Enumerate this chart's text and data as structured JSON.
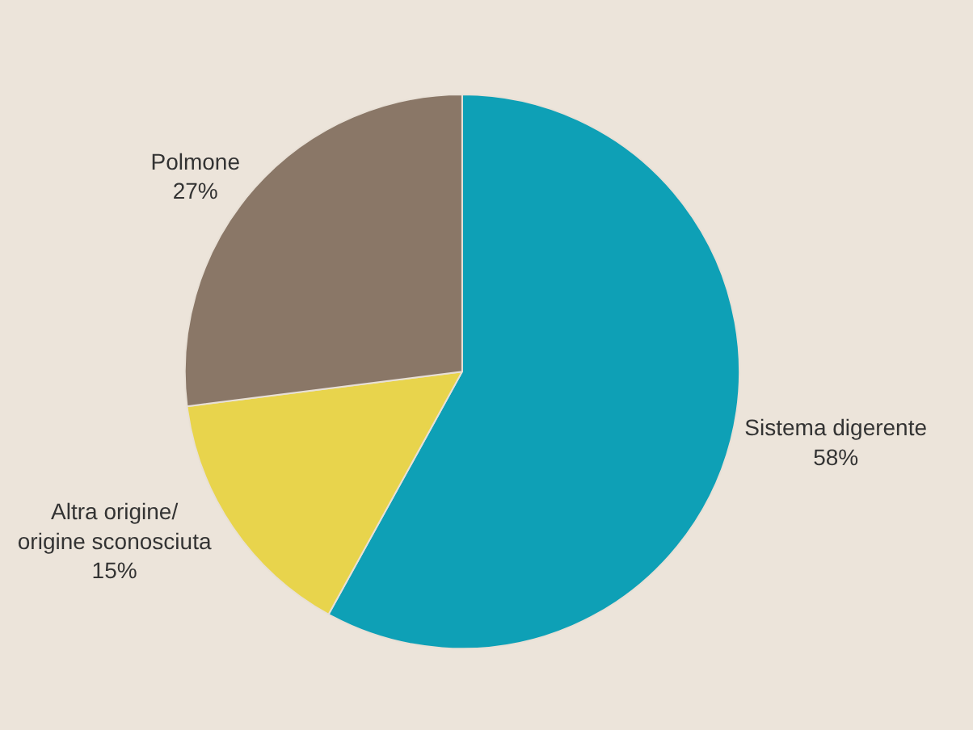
{
  "chart_data": {
    "type": "pie",
    "categories": [
      "Sistema digerente",
      "Altra origine/\norigine sconosciuta",
      "Polmone"
    ],
    "values": [
      58,
      15,
      27
    ],
    "colors": [
      "#0ea0b6",
      "#e8d44c",
      "#8a7767"
    ],
    "value_labels": [
      "58%",
      "15%",
      "27%"
    ]
  }
}
